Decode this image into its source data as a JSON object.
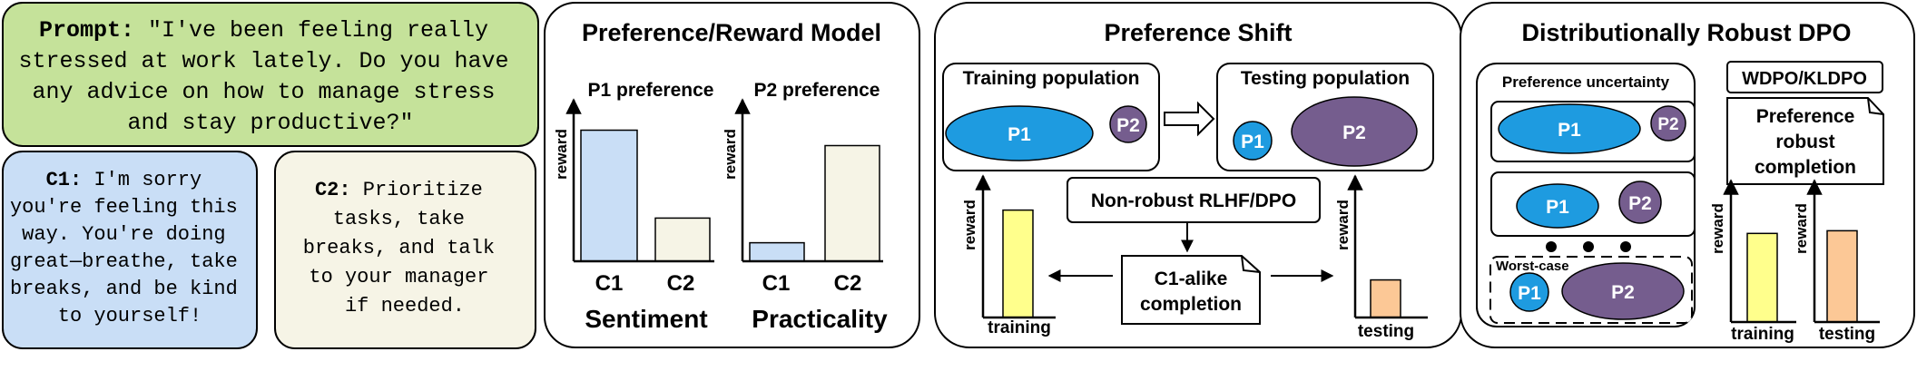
{
  "prompt": {
    "label": "Prompt:",
    "lines": [
      "\"I've been feeling really",
      "stressed at work lately. Do you have",
      "any advice on how to manage stress",
      "and stay productive?\""
    ]
  },
  "c1": {
    "label": "C1:",
    "lines": [
      "I'm sorry",
      "you're feeling this",
      "way. You're doing",
      "great—breathe, take",
      "breaks, and be kind",
      "to yourself!"
    ]
  },
  "c2": {
    "label": "C2:",
    "lines": [
      "Prioritize",
      "tasks, take",
      "breaks, and talk",
      "to your manager",
      "if needed."
    ]
  },
  "reward_model": {
    "title": "Preference/Reward Model",
    "p1_title": "P1 preference",
    "p2_title": "P2 preference",
    "ylabel": "reward",
    "p1_caption": "Sentiment",
    "p2_caption": "Practicality"
  },
  "shift": {
    "title": "Preference Shift",
    "train_pop": "Training population",
    "test_pop": "Testing population",
    "method": "Non-robust RLHF/DPO",
    "completion_lines": [
      "C1-alike",
      "completion"
    ],
    "ylabel": "reward",
    "train_x": "training",
    "test_x": "testing"
  },
  "robust": {
    "title": "Distributionally Robust DPO",
    "uncertainty": "Preference uncertainty",
    "worst_case": "Worst-case",
    "method": "WDPO/KLDPO",
    "completion_lines": [
      "Preference",
      "robust",
      "completion"
    ],
    "ylabel": "reward",
    "train_x": "training",
    "test_x": "testing"
  },
  "labels": {
    "p1": "P1",
    "p2": "P2"
  },
  "chart_data": [
    {
      "type": "bar",
      "title": "P1 preference",
      "xlabel": "Sentiment",
      "ylabel": "reward",
      "categories": [
        "C1",
        "C2"
      ],
      "values": [
        0.85,
        0.28
      ]
    },
    {
      "type": "bar",
      "title": "P2 preference",
      "xlabel": "Practicality",
      "ylabel": "reward",
      "categories": [
        "C1",
        "C2"
      ],
      "values": [
        0.12,
        0.75
      ]
    },
    {
      "type": "bar",
      "ylabel": "reward",
      "categories": [
        "training"
      ],
      "values": [
        0.8
      ]
    },
    {
      "type": "bar",
      "ylabel": "reward",
      "categories": [
        "testing"
      ],
      "values": [
        0.28
      ]
    },
    {
      "type": "bar",
      "ylabel": "reward",
      "categories": [
        "training"
      ],
      "values": [
        0.66
      ]
    },
    {
      "type": "bar",
      "ylabel": "reward",
      "categories": [
        "testing"
      ],
      "values": [
        0.68
      ]
    }
  ],
  "colors": {
    "prompt_bg": "#c5e29a",
    "c1_bg": "#c9def6",
    "c2_bg": "#f6f4e6",
    "p1": "#1e9be0",
    "p2": "#755d8e",
    "bar_c1": "#c9def6",
    "bar_c2": "#f6f4e6",
    "bar_yellow": "#ffff8c",
    "bar_orange": "#fcc896"
  }
}
